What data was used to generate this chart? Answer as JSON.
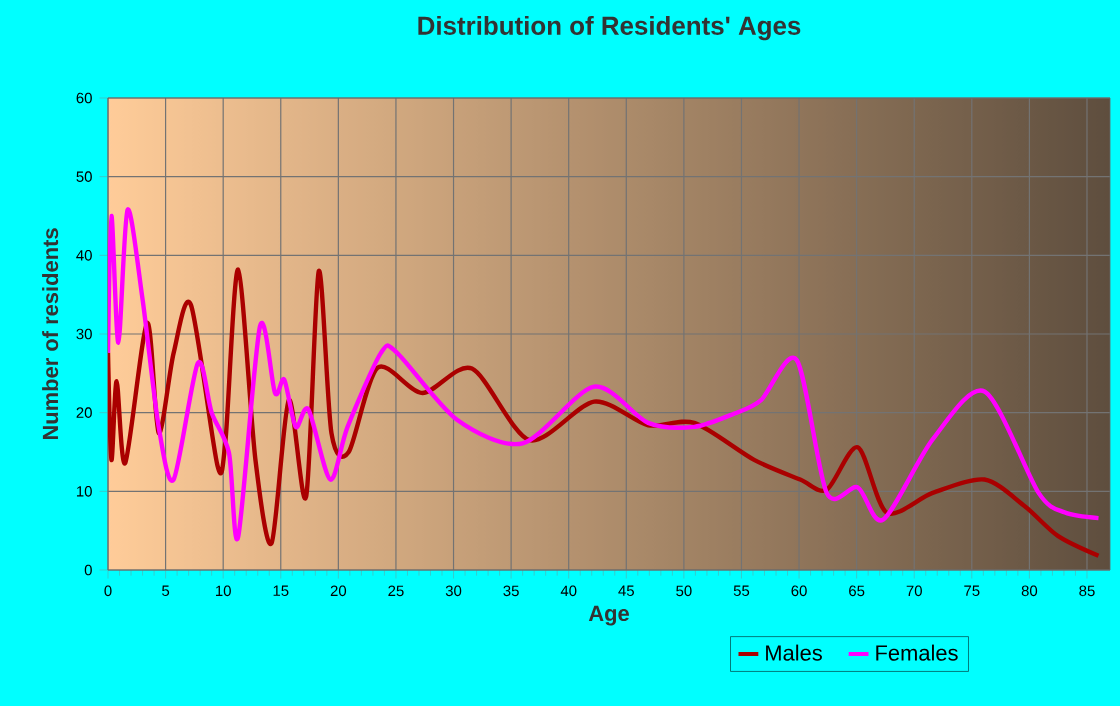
{
  "chart_data": {
    "type": "line",
    "title": "Distribution of Residents' Ages",
    "xlabel": "Age",
    "ylabel": "Number of residents",
    "xlim": [
      0,
      87
    ],
    "xticks": [
      0,
      5,
      10,
      15,
      20,
      25,
      30,
      35,
      40,
      45,
      50,
      55,
      60,
      65,
      70,
      75,
      80,
      85
    ],
    "ylim": [
      0,
      60
    ],
    "yticks": [
      0,
      10,
      20,
      30,
      40,
      50,
      60
    ],
    "grid": true,
    "legend": "bottom",
    "marker": "none",
    "line_style": "solid",
    "series": [
      {
        "name": "Males",
        "color": "#aa0000",
        "x": [
          0,
          0.3,
          0.75,
          1.5,
          3.4,
          4.4,
          5.7,
          7.2,
          9.5,
          10.2,
          11.3,
          12.8,
          14.2,
          15.7,
          17.2,
          18.3,
          19.4,
          20.9,
          23.4,
          27.3,
          31.6,
          36.6,
          42.2,
          46.9,
          50.9,
          56.1,
          60.1,
          62.4,
          65.1,
          67.6,
          71.6,
          76.1,
          79.6,
          82.5,
          86
        ],
        "values": [
          27.6,
          14,
          24,
          13.6,
          31.4,
          17.4,
          27.6,
          33.7,
          13.3,
          16.5,
          38.2,
          14,
          3.4,
          21.6,
          9.3,
          38,
          17.4,
          15,
          25.7,
          22.5,
          25.6,
          16.5,
          21.4,
          18.4,
          18.7,
          14,
          11.5,
          10.2,
          15.6,
          7.3,
          9.8,
          11.5,
          8.1,
          4.3,
          1.8
        ]
      },
      {
        "name": "Females",
        "color": "#ff00ff",
        "x": [
          0,
          0.3,
          0.9,
          1.7,
          3,
          4.4,
          5.7,
          7.8,
          9,
          10.5,
          11.3,
          13.2,
          14.5,
          15.3,
          16.3,
          17.4,
          19.3,
          20.8,
          23.7,
          25.1,
          30.3,
          36,
          42.2,
          46.9,
          50.9,
          54.4,
          56.7,
          59.8,
          62.4,
          65.1,
          67.3,
          71.6,
          76.1,
          80.8,
          83.1,
          86
        ],
        "values": [
          27.6,
          45,
          28.9,
          45.8,
          34.4,
          18.2,
          11.5,
          26.3,
          20,
          14.9,
          4.2,
          31,
          22.5,
          24.2,
          18.2,
          20.4,
          11.5,
          18.2,
          27.6,
          27.6,
          19.1,
          16.1,
          23.3,
          18.7,
          18.2,
          19.9,
          21.6,
          26.7,
          9.8,
          10.5,
          6.4,
          16.6,
          22.7,
          9.8,
          7.3,
          6.6
        ]
      }
    ]
  }
}
